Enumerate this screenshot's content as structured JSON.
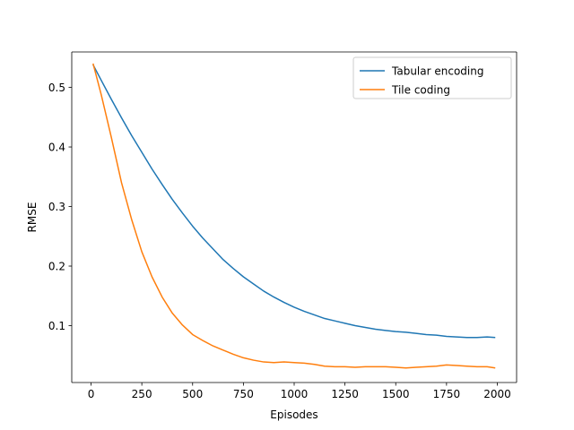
{
  "chart_data": {
    "type": "line",
    "title": "",
    "xlabel": "Episodes",
    "ylabel": "RMSE",
    "xlim": [
      -95,
      2095
    ],
    "ylim": [
      0.0045,
      0.5595
    ],
    "xticks": [
      0,
      250,
      500,
      750,
      1000,
      1250,
      1500,
      1750,
      2000
    ],
    "yticks": [
      0.1,
      0.2,
      0.3,
      0.4,
      0.5
    ],
    "ytick_labels": [
      "0.1",
      "0.2",
      "0.3",
      "0.4",
      "0.5"
    ],
    "grid": false,
    "legend_position": "top-right",
    "series": [
      {
        "name": "Tabular encoding",
        "color": "#1f77b4",
        "x": [
          10,
          50,
          100,
          150,
          200,
          250,
          300,
          350,
          400,
          450,
          500,
          550,
          600,
          650,
          700,
          750,
          800,
          850,
          900,
          950,
          1000,
          1050,
          1100,
          1150,
          1200,
          1250,
          1300,
          1350,
          1400,
          1450,
          1500,
          1550,
          1600,
          1650,
          1700,
          1750,
          1800,
          1850,
          1900,
          1950,
          1990
        ],
        "y": [
          0.538,
          0.512,
          0.48,
          0.449,
          0.419,
          0.391,
          0.363,
          0.337,
          0.312,
          0.289,
          0.267,
          0.247,
          0.229,
          0.211,
          0.196,
          0.182,
          0.17,
          0.158,
          0.148,
          0.139,
          0.131,
          0.124,
          0.118,
          0.112,
          0.108,
          0.104,
          0.1,
          0.097,
          0.094,
          0.092,
          0.09,
          0.089,
          0.087,
          0.085,
          0.084,
          0.082,
          0.081,
          0.08,
          0.08,
          0.081,
          0.08
        ]
      },
      {
        "name": "Tile coding",
        "color": "#ff7f0e",
        "x": [
          10,
          50,
          100,
          150,
          200,
          250,
          300,
          350,
          400,
          450,
          500,
          550,
          600,
          650,
          700,
          750,
          800,
          850,
          900,
          950,
          1000,
          1050,
          1100,
          1150,
          1200,
          1250,
          1300,
          1350,
          1400,
          1450,
          1500,
          1550,
          1600,
          1650,
          1700,
          1750,
          1800,
          1850,
          1900,
          1950,
          1990
        ],
        "y": [
          0.54,
          0.488,
          0.416,
          0.34,
          0.278,
          0.224,
          0.182,
          0.148,
          0.121,
          0.101,
          0.085,
          0.075,
          0.066,
          0.059,
          0.052,
          0.046,
          0.042,
          0.039,
          0.038,
          0.039,
          0.038,
          0.037,
          0.035,
          0.032,
          0.031,
          0.031,
          0.03,
          0.031,
          0.031,
          0.031,
          0.03,
          0.029,
          0.03,
          0.031,
          0.032,
          0.034,
          0.033,
          0.032,
          0.031,
          0.031,
          0.029
        ]
      }
    ]
  }
}
